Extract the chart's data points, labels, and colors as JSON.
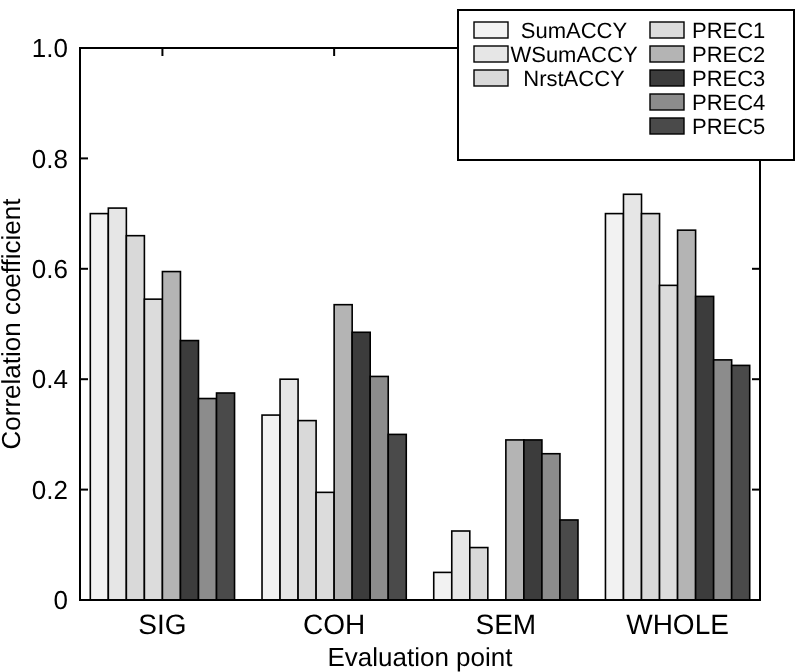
{
  "chart_data": {
    "type": "bar",
    "xlabel": "Evaluation point",
    "ylabel": "Correlation coefficient",
    "categories": [
      "SIG",
      "COH",
      "SEM",
      "WHOLE"
    ],
    "series": [
      {
        "name": "SumACCY",
        "color": "#f2f2f2",
        "values": [
          0.7,
          0.335,
          0.05,
          0.7
        ]
      },
      {
        "name": "WSumACCY",
        "color": "#e6e6e6",
        "values": [
          0.71,
          0.4,
          0.125,
          0.735
        ]
      },
      {
        "name": "NrstACCY",
        "color": "#d9d9d9",
        "values": [
          0.66,
          0.325,
          0.095,
          0.7
        ]
      },
      {
        "name": "PREC1",
        "color": "#dcdcdc",
        "values": [
          0.545,
          0.195,
          null,
          0.57
        ]
      },
      {
        "name": "PREC2",
        "color": "#b4b4b4",
        "values": [
          0.595,
          0.535,
          0.29,
          0.67
        ]
      },
      {
        "name": "PREC3",
        "color": "#3c3c3c",
        "values": [
          0.47,
          0.485,
          0.29,
          0.55
        ]
      },
      {
        "name": "PREC4",
        "color": "#8c8c8c",
        "values": [
          0.365,
          0.405,
          0.265,
          0.435
        ]
      },
      {
        "name": "PREC5",
        "color": "#4a4a4a",
        "values": [
          0.375,
          0.3,
          0.145,
          0.425
        ]
      }
    ],
    "ylim": [
      0,
      1
    ],
    "yticks": [
      0,
      0.2,
      0.4,
      0.6,
      0.8,
      {
        "value": 1,
        "label": "1.0"
      }
    ],
    "legend": "top right"
  }
}
